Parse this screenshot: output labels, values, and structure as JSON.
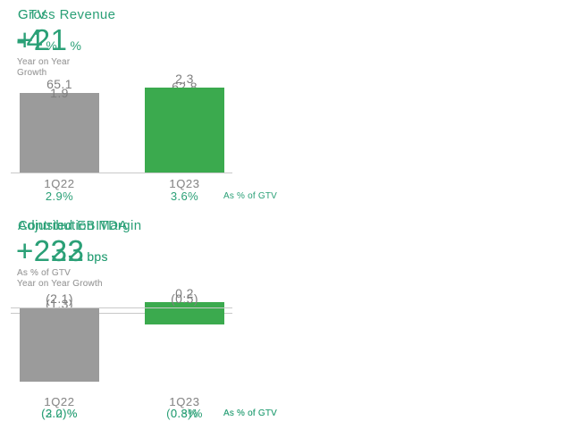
{
  "colors": {
    "accent_green": "#2BA077",
    "bar_green": "#3BAA4E",
    "bar_gray": "#9B9B9B",
    "value_label_gray": "#7F7F7F",
    "subtitle_gray": "#9E9E9E",
    "axis_line": "#C9C9C9",
    "background": "#FFFFFF"
  },
  "chart_data": [
    {
      "type": "bar",
      "title": "GTV",
      "metric": {
        "value": "-4",
        "unit": "%"
      },
      "subtitle_lines": [
        "Year on Year",
        "Growth"
      ],
      "categories": [
        "1Q22",
        "1Q23"
      ],
      "values": [
        65.1,
        62.8
      ],
      "value_labels": [
        "65.1",
        "62.8"
      ],
      "bar_colors": [
        "gray",
        "green"
      ],
      "footer_percents": null,
      "footer_note": null,
      "ylim": [
        0,
        70
      ],
      "grid": false,
      "legend": false
    },
    {
      "type": "bar",
      "title": "Gross Revenue",
      "metric": {
        "value": "+21",
        "unit": "%"
      },
      "subtitle_lines": [
        "Year on Year",
        "Growth"
      ],
      "categories": [
        "1Q22",
        "1Q23"
      ],
      "values": [
        1.9,
        2.3
      ],
      "value_labels": [
        "1.9",
        "2.3"
      ],
      "bar_colors": [
        "gray",
        "green"
      ],
      "footer_percents": [
        "2.9%",
        "3.6%"
      ],
      "footer_note": "As % of GTV",
      "ylim": [
        0,
        2.5
      ],
      "grid": false,
      "legend": false
    },
    {
      "type": "bar",
      "title": "Contribution Margin",
      "metric": {
        "value": "+223",
        "unit": "bps"
      },
      "subtitle_lines": [
        "As % of GTV",
        "Year on Year Growth"
      ],
      "categories": [
        "1Q22",
        "1Q23"
      ],
      "values": [
        -1.3,
        0.2
      ],
      "value_labels": [
        "(1.3)",
        "0.2"
      ],
      "bar_colors": [
        "gray",
        "green"
      ],
      "footer_percents": [
        "(2.0)%",
        "0.3%"
      ],
      "footer_note": "As % of GTV",
      "ylim": [
        -1.5,
        0.3
      ],
      "grid": false,
      "legend": false
    },
    {
      "type": "bar",
      "title": "Adjusted EBITDA",
      "metric": {
        "value": "+232",
        "unit": "bps"
      },
      "subtitle_lines": [
        "As % of GTV",
        "Year on Year Growth"
      ],
      "categories": [
        "1Q22",
        "1Q23"
      ],
      "values": [
        -2.1,
        -0.5
      ],
      "value_labels": [
        "(2.1)",
        "(0.5)"
      ],
      "bar_colors": [
        "gray",
        "green"
      ],
      "footer_percents": [
        "(3.2)%",
        "(0.8)%"
      ],
      "footer_note": "As % of GTV",
      "ylim": [
        -2.3,
        0
      ],
      "grid": false,
      "legend": false
    }
  ]
}
